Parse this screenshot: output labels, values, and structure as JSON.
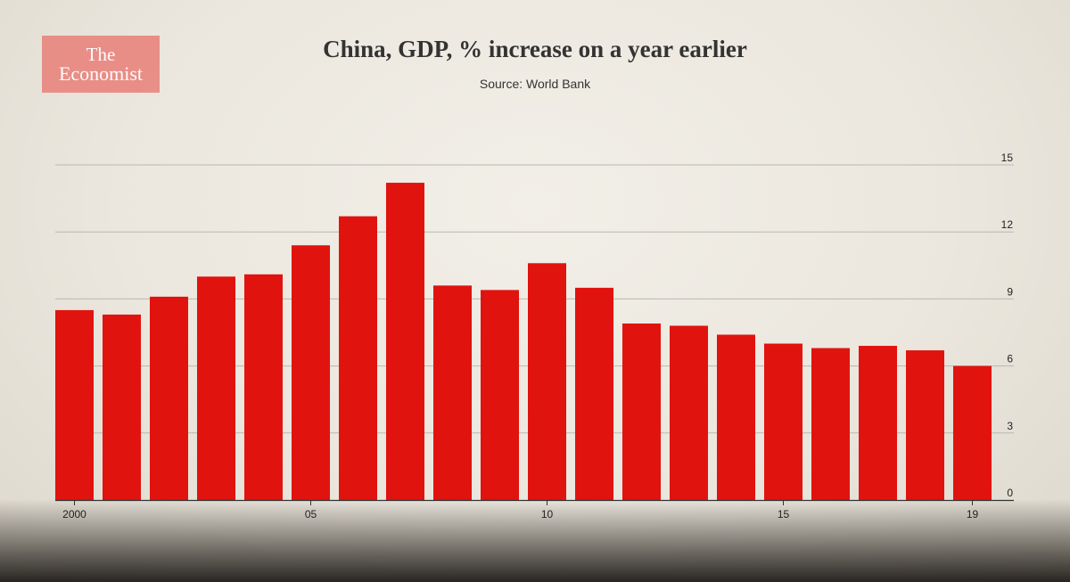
{
  "logo": {
    "line1": "The",
    "line2": "Economist"
  },
  "colors": {
    "bar": "#e1130f",
    "grid": "#b9b7b0",
    "axis": "#333333"
  },
  "chart_data": {
    "type": "bar",
    "title": "China, GDP, % increase on a year earlier",
    "subtitle": "Source: World Bank",
    "xlabel": "",
    "ylabel": "",
    "ylim": [
      0,
      15
    ],
    "yticks": [
      0,
      3,
      6,
      9,
      12,
      15
    ],
    "grid": true,
    "categories": [
      "2000",
      "2001",
      "2002",
      "2003",
      "2004",
      "2005",
      "2006",
      "2007",
      "2008",
      "2009",
      "2010",
      "2011",
      "2012",
      "2013",
      "2014",
      "2015",
      "2016",
      "2017",
      "2018",
      "2019"
    ],
    "values": [
      8.5,
      8.3,
      9.1,
      10.0,
      10.1,
      11.4,
      12.7,
      14.2,
      9.6,
      9.4,
      10.6,
      9.5,
      7.9,
      7.8,
      7.4,
      7.0,
      6.8,
      6.9,
      6.7,
      6.0
    ],
    "xtick_labels": [
      {
        "index": 0,
        "label": "2000"
      },
      {
        "index": 5,
        "label": "05"
      },
      {
        "index": 10,
        "label": "10"
      },
      {
        "index": 15,
        "label": "15"
      },
      {
        "index": 19,
        "label": "19"
      }
    ]
  }
}
